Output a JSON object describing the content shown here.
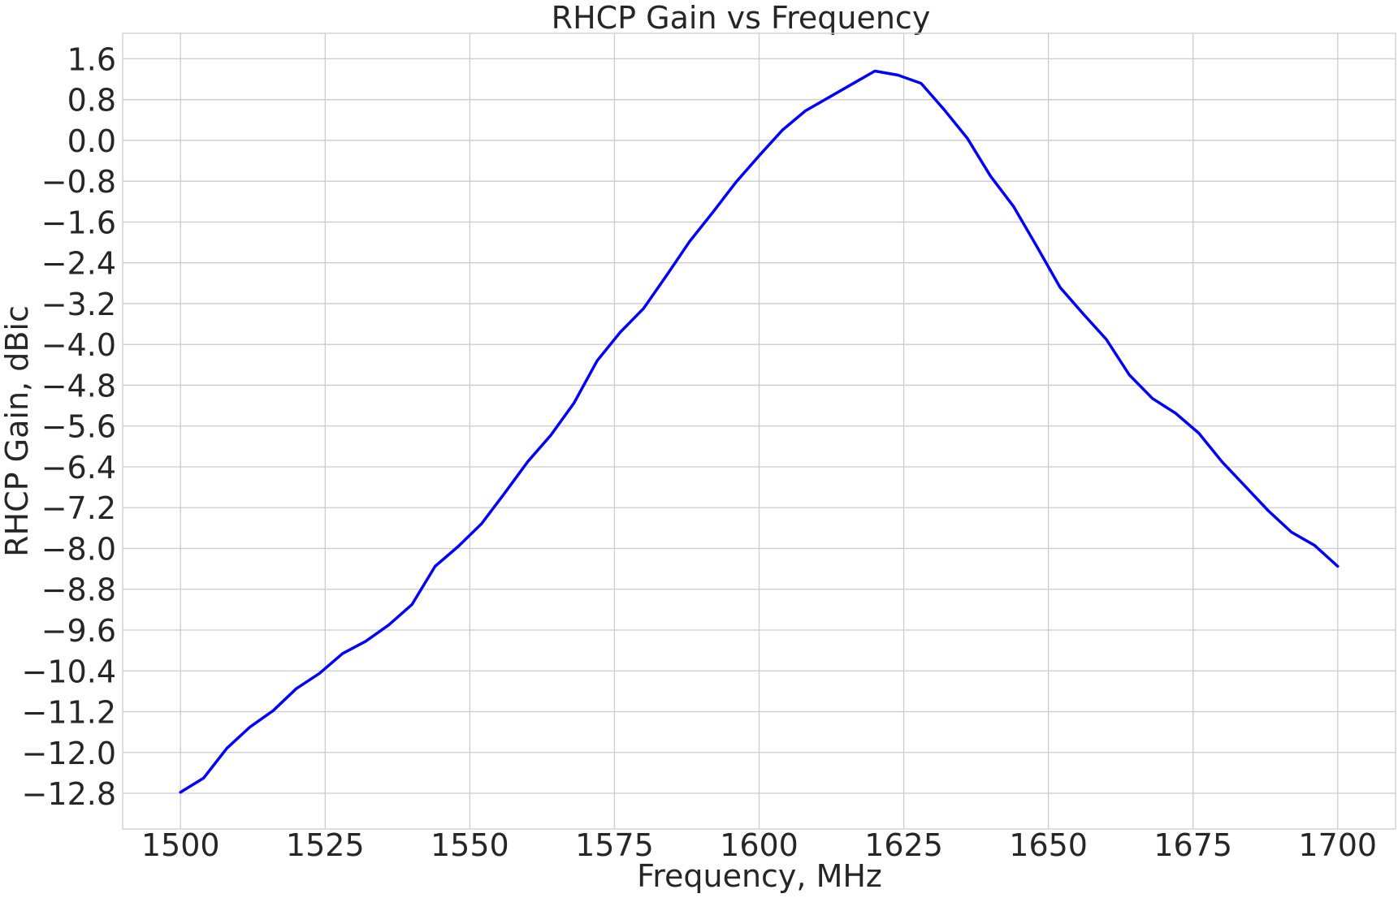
{
  "chart_data": {
    "type": "line",
    "title": "RHCP Gain vs Frequency",
    "xlabel": "Frequency, MHz",
    "ylabel": "RHCP Gain, dBic",
    "xlim": [
      1490,
      1710
    ],
    "ylim": [
      -13.5,
      2.1
    ],
    "x_ticks": [
      1500,
      1525,
      1550,
      1575,
      1600,
      1625,
      1650,
      1675,
      1700
    ],
    "y_ticks": [
      1.6,
      0.8,
      0.0,
      -0.8,
      -1.6,
      -2.4,
      -3.2,
      -4.0,
      -4.8,
      -5.6,
      -6.4,
      -7.2,
      -8.0,
      -8.8,
      -9.6,
      -10.4,
      -11.2,
      -12.0,
      -12.8
    ],
    "x_tick_labels": [
      "1500",
      "1525",
      "1550",
      "1575",
      "1600",
      "1625",
      "1650",
      "1675",
      "1700"
    ],
    "y_tick_labels": [
      "1.6",
      "0.8",
      "0.0",
      "−0.8",
      "−1.6",
      "−2.4",
      "−3.2",
      "−4.0",
      "−4.8",
      "−5.6",
      "−6.4",
      "−7.2",
      "−8.0",
      "−8.8",
      "−9.6",
      "−10.4",
      "−11.2",
      "−12.0",
      "−12.8"
    ],
    "grid": true,
    "series": [
      {
        "color": "#0000ff",
        "x": [
          1500,
          1504,
          1508,
          1512,
          1516,
          1520,
          1524,
          1528,
          1532,
          1536,
          1540,
          1544,
          1548,
          1552,
          1556,
          1560,
          1564,
          1568,
          1572,
          1576,
          1580,
          1584,
          1588,
          1592,
          1596,
          1600,
          1604,
          1608,
          1612,
          1616,
          1620,
          1624,
          1628,
          1632,
          1636,
          1640,
          1644,
          1648,
          1652,
          1656,
          1660,
          1664,
          1668,
          1672,
          1676,
          1680,
          1684,
          1688,
          1692,
          1696,
          1700
        ],
        "y": [
          -12.78,
          -12.5,
          -11.92,
          -11.5,
          -11.18,
          -10.75,
          -10.45,
          -10.06,
          -9.82,
          -9.5,
          -9.1,
          -8.35,
          -7.96,
          -7.52,
          -6.92,
          -6.3,
          -5.78,
          -5.15,
          -4.32,
          -3.76,
          -3.3,
          -2.65,
          -1.98,
          -1.41,
          -0.82,
          -0.3,
          0.2,
          0.58,
          0.84,
          1.1,
          1.36,
          1.28,
          1.12,
          0.6,
          0.04,
          -0.7,
          -1.3,
          -2.08,
          -2.88,
          -3.4,
          -3.9,
          -4.6,
          -5.06,
          -5.35,
          -5.74,
          -6.3,
          -6.78,
          -7.26,
          -7.68,
          -7.94,
          -8.35
        ]
      }
    ]
  }
}
